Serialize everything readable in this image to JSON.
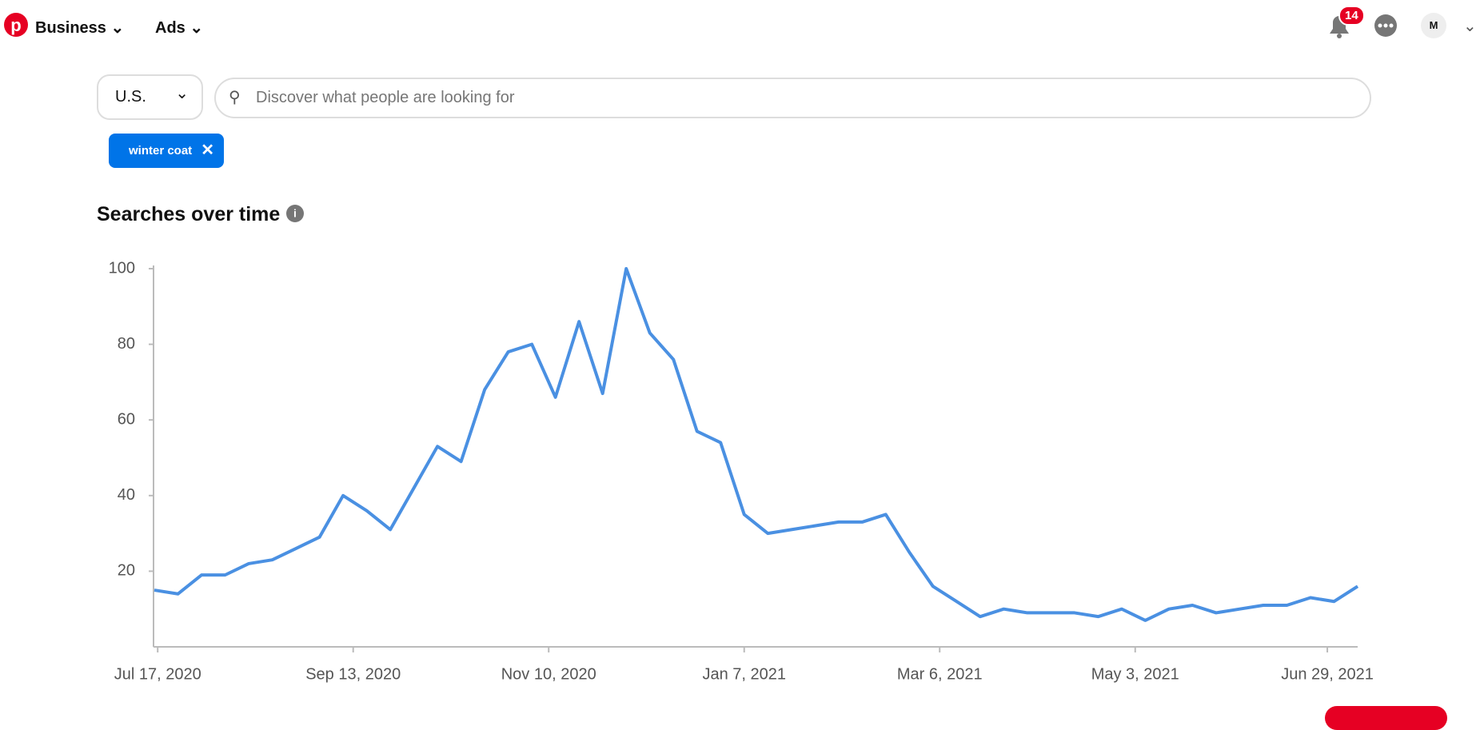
{
  "header": {
    "brand": "Business",
    "ads": "Ads",
    "notifications": "14",
    "avatar": "M"
  },
  "search": {
    "country": "U.S.",
    "placeholder": "Discover what people are looking for",
    "chips": [
      "winter coat"
    ]
  },
  "chart_data": {
    "type": "line",
    "title": "Searches over time",
    "x": [
      "2020-07-16",
      "2020-07-23",
      "2020-07-30",
      "2020-08-06",
      "2020-08-13",
      "2020-08-20",
      "2020-08-27",
      "2020-09-03",
      "2020-09-10",
      "2020-09-17",
      "2020-09-24",
      "2020-10-01",
      "2020-10-08",
      "2020-10-15",
      "2020-10-22",
      "2020-10-29",
      "2020-11-05",
      "2020-11-12",
      "2020-11-19",
      "2020-11-26",
      "2020-12-03",
      "2020-12-10",
      "2020-12-17",
      "2020-12-24",
      "2020-12-31",
      "2021-01-07",
      "2021-01-14",
      "2021-01-21",
      "2021-01-28",
      "2021-02-04",
      "2021-02-11",
      "2021-02-18",
      "2021-02-25",
      "2021-03-04",
      "2021-03-11",
      "2021-03-18",
      "2021-03-25",
      "2021-04-01",
      "2021-04-08",
      "2021-04-15",
      "2021-04-22",
      "2021-04-29",
      "2021-05-06",
      "2021-05-13",
      "2021-05-20",
      "2021-05-27",
      "2021-06-03",
      "2021-06-10",
      "2021-06-17",
      "2021-06-24",
      "2021-07-01",
      "2021-07-08"
    ],
    "series": [
      {
        "color": "#4a90e2",
        "values": [
          15,
          14,
          19,
          19,
          22,
          23,
          26,
          29,
          40,
          36,
          31,
          42,
          53,
          49,
          68,
          78,
          80,
          66,
          86,
          67,
          100,
          83,
          76,
          57,
          54,
          35,
          30,
          31,
          32,
          33,
          33,
          35,
          25,
          16,
          12,
          8,
          10,
          9,
          9,
          9,
          8,
          10,
          7,
          10,
          11,
          9,
          10,
          11,
          11,
          13,
          12,
          16
        ]
      }
    ],
    "xlim": [
      "2020-07-16",
      "2021-07-08"
    ],
    "xticks": [
      {
        "value": "2020-07-17",
        "label": "Jul 17, 2020"
      },
      {
        "value": "2020-09-13",
        "label": "Sep 13, 2020"
      },
      {
        "value": "2020-11-10",
        "label": "Nov 10, 2020"
      },
      {
        "value": "2021-01-07",
        "label": "Jan 7, 2021"
      },
      {
        "value": "2021-03-06",
        "label": "Mar 6, 2021"
      },
      {
        "value": "2021-05-03",
        "label": "May 3, 2021"
      },
      {
        "value": "2021-06-29",
        "label": "Jun 29, 2021"
      }
    ],
    "ylim": [
      0,
      100
    ],
    "yticks": [
      20,
      40,
      60,
      80,
      100
    ]
  }
}
